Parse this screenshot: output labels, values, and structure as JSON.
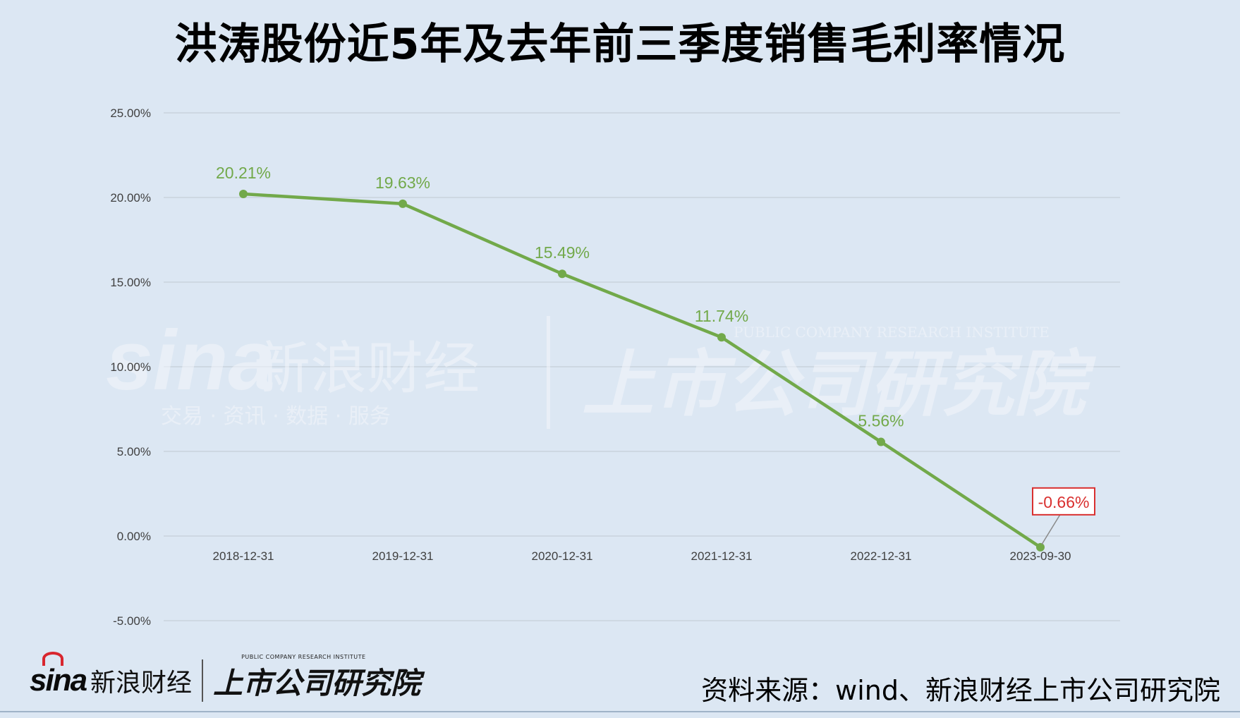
{
  "chart_data": {
    "type": "line",
    "title": "洪涛股份近5年及去年前三季度销售毛利率情况",
    "xlabel": "",
    "ylabel": "",
    "categories": [
      "2018-12-31",
      "2019-12-31",
      "2020-12-31",
      "2021-12-31",
      "2022-12-31",
      "2023-09-30"
    ],
    "series": [
      {
        "values": [
          20.21,
          19.63,
          15.49,
          11.74,
          5.56,
          -0.66
        ],
        "labels": [
          "20.21%",
          "19.63%",
          "15.49%",
          "11.74%",
          "5.56%",
          "-0.66%"
        ]
      }
    ],
    "ylim": [
      -5,
      25
    ],
    "yticks": [
      "25.00%",
      "20.00%",
      "15.00%",
      "10.00%",
      "5.00%",
      "0.00%",
      "-5.00%"
    ],
    "ytick_values": [
      25,
      20,
      15,
      10,
      5,
      0,
      -5
    ],
    "grid": true,
    "legend": "none",
    "colors": {
      "line": "#72a94a",
      "highlight": "#d9302f",
      "grid": "#c9d3dd",
      "background": "#dce7f3"
    }
  },
  "watermark": {
    "sina_en": "sina",
    "sina_cn": "新浪财经",
    "sina_sub": "交易 · 资讯 · 数据 · 服务",
    "inst_cn": "上市公司研究院",
    "inst_en": "PUBLIC COMPANY RESEARCH INSTITUTE"
  },
  "footer": {
    "sina_en": "sina",
    "sina_cn": "新浪财经",
    "inst_cn": "上市公司研究院",
    "inst_en": "PUBLIC COMPANY RESEARCH INSTITUTE",
    "source": "资料来源：wind、新浪财经上市公司研究院"
  }
}
